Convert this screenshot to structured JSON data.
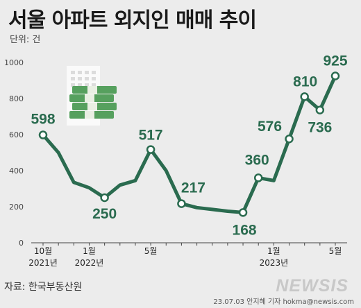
{
  "title": "서울 아파트 외지인 매매 추이",
  "unit_label": "단위: 건",
  "source": "자료: 한국부동산원",
  "logo_text": "NEWSIS",
  "credit": "23.07.03 안지혜 기자 hokma@newsis.com",
  "colors": {
    "line": "#2a6b4f",
    "value_text": "#2a6b4f",
    "axis": "#444444",
    "background": "#ececec"
  },
  "icon": "money-stack-icon",
  "chart_data": {
    "type": "line",
    "title": "서울 아파트 외지인 매매 추이",
    "xlabel": "",
    "ylabel": "",
    "unit": "건",
    "ylim": [
      0,
      1000
    ],
    "yticks": [
      0,
      200,
      400,
      600,
      800,
      1000
    ],
    "grid": false,
    "x": [
      "2021-10",
      "2021-11",
      "2021-12",
      "2022-01",
      "2022-02",
      "2022-03",
      "2022-04",
      "2022-05",
      "2022-06",
      "2022-07",
      "2022-08",
      "2022-09",
      "2022-10",
      "2022-11",
      "2022-12",
      "2023-01",
      "2023-02",
      "2023-03",
      "2023-04",
      "2023-05"
    ],
    "values": [
      598,
      500,
      335,
      305,
      250,
      320,
      345,
      517,
      400,
      217,
      195,
      185,
      175,
      168,
      360,
      345,
      576,
      810,
      736,
      925
    ],
    "markers": [
      true,
      false,
      false,
      false,
      true,
      false,
      false,
      true,
      false,
      true,
      false,
      false,
      false,
      true,
      true,
      false,
      true,
      true,
      true,
      true
    ],
    "value_labels": [
      {
        "index": 0,
        "text": "598"
      },
      {
        "index": 4,
        "text": "250"
      },
      {
        "index": 7,
        "text": "517"
      },
      {
        "index": 9,
        "text": "217"
      },
      {
        "index": 13,
        "text": "168"
      },
      {
        "index": 14,
        "text": "360"
      },
      {
        "index": 16,
        "text": "576"
      },
      {
        "index": 17,
        "text": "810"
      },
      {
        "index": 18,
        "text": "736"
      },
      {
        "index": 19,
        "text": "925"
      }
    ],
    "x_tick_labels": [
      {
        "index": 0,
        "month": "10월",
        "year": "2021년"
      },
      {
        "index": 3,
        "month": "1월",
        "year": "2022년"
      },
      {
        "index": 7,
        "month": "5월",
        "year": ""
      },
      {
        "index": 15,
        "month": "1월",
        "year": "2023년"
      },
      {
        "index": 19,
        "month": "5월",
        "year": ""
      }
    ]
  }
}
